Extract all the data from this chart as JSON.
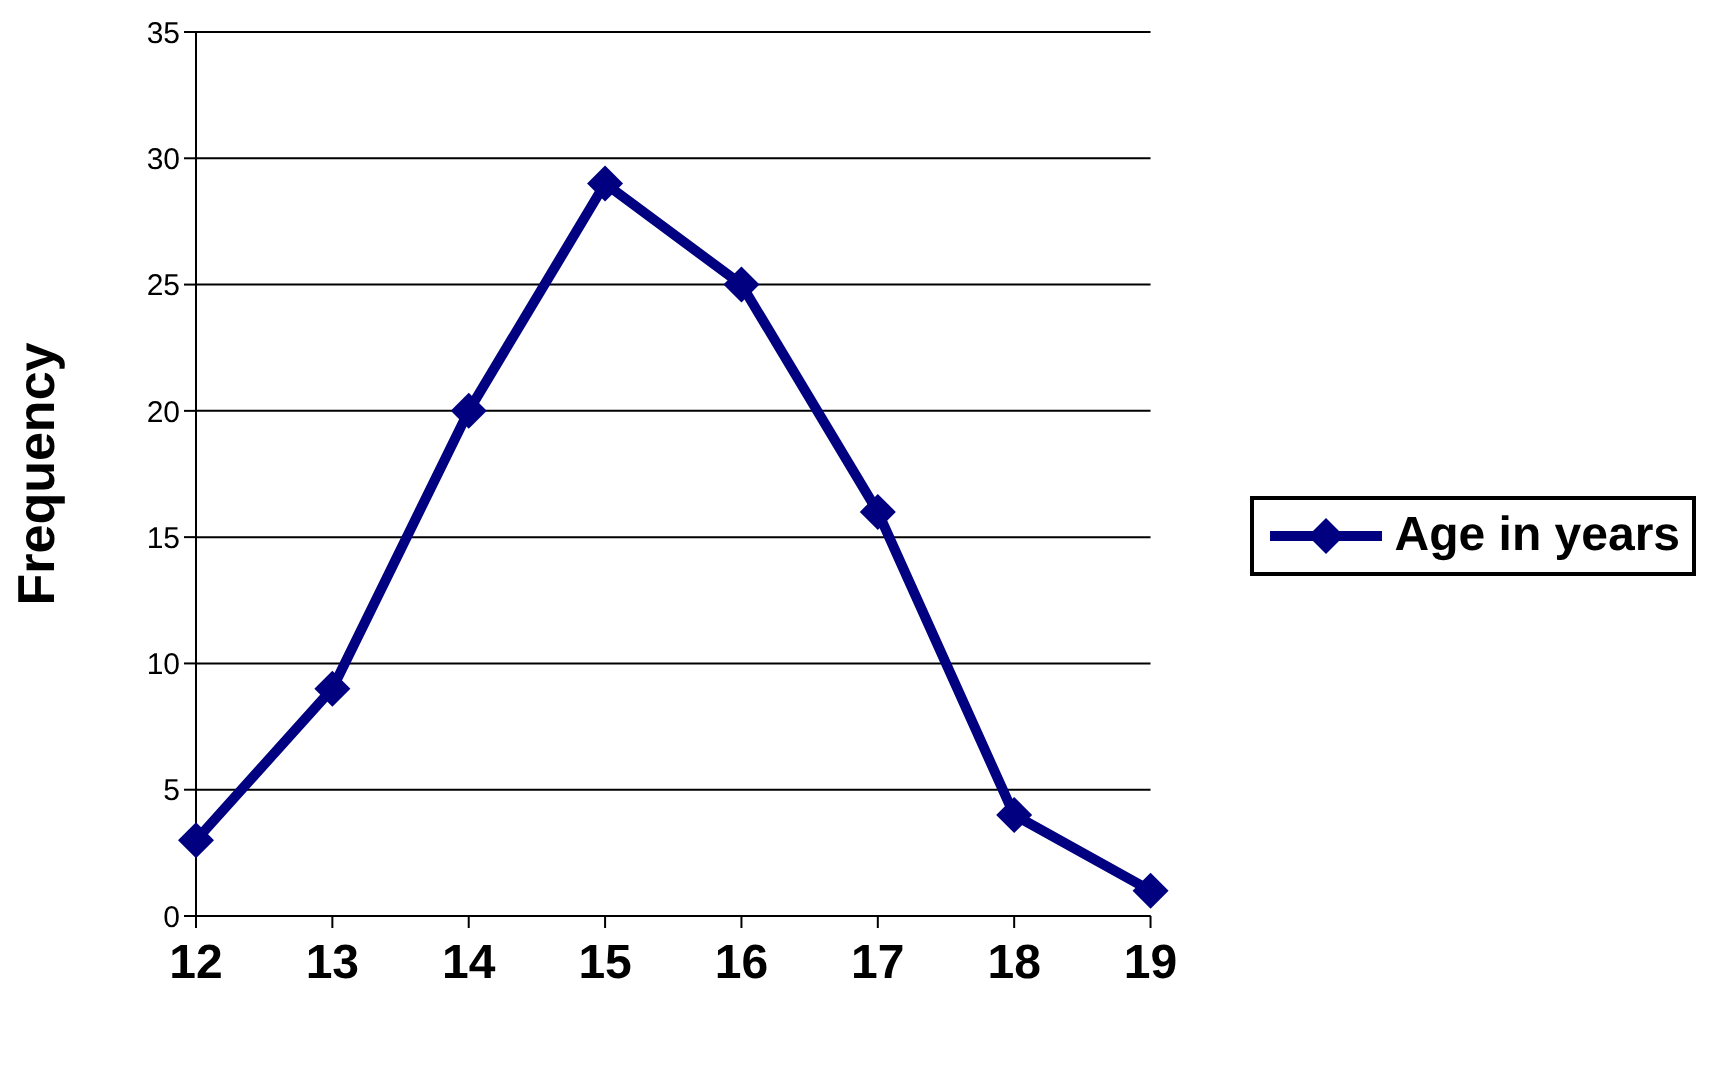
{
  "chart_data": {
    "type": "line",
    "ylabel": "Frequency",
    "categories": [
      "12",
      "13",
      "14",
      "15",
      "16",
      "17",
      "18",
      "19"
    ],
    "series": [
      {
        "name": "Age in years",
        "color": "#000080",
        "values": [
          3,
          9,
          20,
          29,
          25,
          16,
          4,
          1
        ]
      }
    ],
    "ylim": [
      0,
      35
    ],
    "yticks": [
      0,
      5,
      10,
      15,
      20,
      25,
      30,
      35
    ],
    "grid": "y",
    "legend": "right",
    "marker": "diamond",
    "line_style": "solid"
  }
}
